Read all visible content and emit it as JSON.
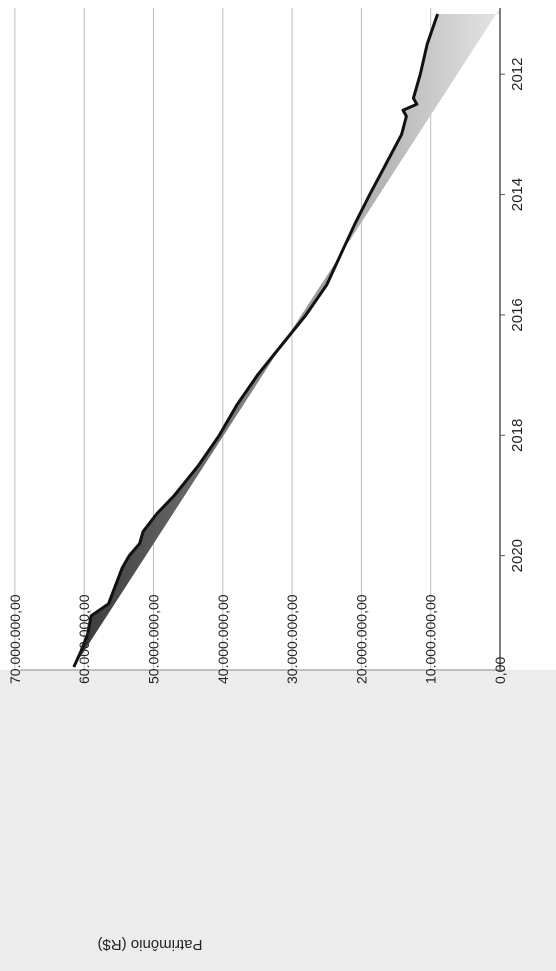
{
  "chart_data": {
    "type": "area",
    "title": "",
    "xlabel": "",
    "ylabel": "Patrimônio (R$)",
    "orientation": "rotated-90-clockwise",
    "x_ticks": [
      "2012",
      "2014",
      "2016",
      "2018",
      "2020"
    ],
    "y_ticks": [
      "0,00",
      "10.000.000,00",
      "20.000.000,00",
      "30.000.000,00",
      "40.000.000,00",
      "50.000.000,00",
      "60.000.000,00",
      "70.000.000,00"
    ],
    "xlim": [
      2010.9,
      2021.9
    ],
    "ylim": [
      0,
      70000000
    ],
    "grid": true,
    "legend": "none",
    "fill": "gradient-gray",
    "line_color": "#111111",
    "series": [
      {
        "x": [
          2011.0,
          2011.5,
          2012.0,
          2012.4,
          2012.5,
          2012.6,
          2012.7,
          2013.0,
          2013.5,
          2014.0,
          2014.5,
          2015.0,
          2015.5,
          2016.0,
          2016.5,
          2017.0,
          2017.5,
          2018.0,
          2018.5,
          2019.0,
          2019.3,
          2019.6,
          2019.8,
          2020.0,
          2020.2,
          2020.5,
          2020.8,
          2021.0,
          2021.3,
          2021.6,
          2021.85
        ],
        "values": [
          9000000,
          10500000,
          11500000,
          12500000,
          12000000,
          14000000,
          13500000,
          14200000,
          16500000,
          18800000,
          21000000,
          23000000,
          25000000,
          28000000,
          31500000,
          35000000,
          38000000,
          40500000,
          43500000,
          47000000,
          49500000,
          51500000,
          52000000,
          53500000,
          54500000,
          55500000,
          56500000,
          59000000,
          59500000,
          60500000,
          61500000
        ]
      }
    ]
  }
}
